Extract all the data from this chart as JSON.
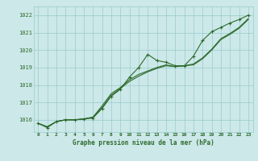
{
  "x": [
    0,
    1,
    2,
    3,
    4,
    5,
    6,
    7,
    8,
    9,
    10,
    11,
    12,
    13,
    14,
    15,
    16,
    17,
    18,
    19,
    20,
    21,
    22,
    23
  ],
  "main_line": [
    1015.8,
    1015.55,
    1015.9,
    1016.0,
    1016.0,
    1016.05,
    1016.1,
    1016.65,
    1017.35,
    1017.75,
    1018.45,
    1019.0,
    1019.75,
    1019.4,
    1019.3,
    1019.1,
    1019.1,
    1019.65,
    1020.55,
    1021.05,
    1021.3,
    1021.55,
    1021.75,
    1022.0
  ],
  "line2": [
    1015.8,
    1015.6,
    1015.9,
    1016.0,
    1016.0,
    1016.05,
    1016.15,
    1016.7,
    1017.4,
    1017.8,
    1018.2,
    1018.5,
    1018.75,
    1018.95,
    1019.1,
    1019.05,
    1019.1,
    1019.2,
    1019.55,
    1020.05,
    1020.65,
    1020.95,
    1021.3,
    1021.8
  ],
  "line3": [
    1015.8,
    1015.6,
    1015.9,
    1016.0,
    1016.0,
    1016.05,
    1016.15,
    1016.8,
    1017.5,
    1017.85,
    1018.3,
    1018.6,
    1018.8,
    1019.0,
    1019.15,
    1019.05,
    1019.1,
    1019.15,
    1019.5,
    1020.0,
    1020.6,
    1020.9,
    1021.25,
    1021.75
  ],
  "ylim": [
    1015.3,
    1022.5
  ],
  "yticks": [
    1016,
    1017,
    1018,
    1019,
    1020,
    1021,
    1022
  ],
  "xlabel": "Graphe pression niveau de la mer (hPa)",
  "bg_color": "#cce8e8",
  "line_color": "#2d6a2d",
  "grid_color": "#99cccc",
  "marker": "+",
  "linewidth": 0.8
}
